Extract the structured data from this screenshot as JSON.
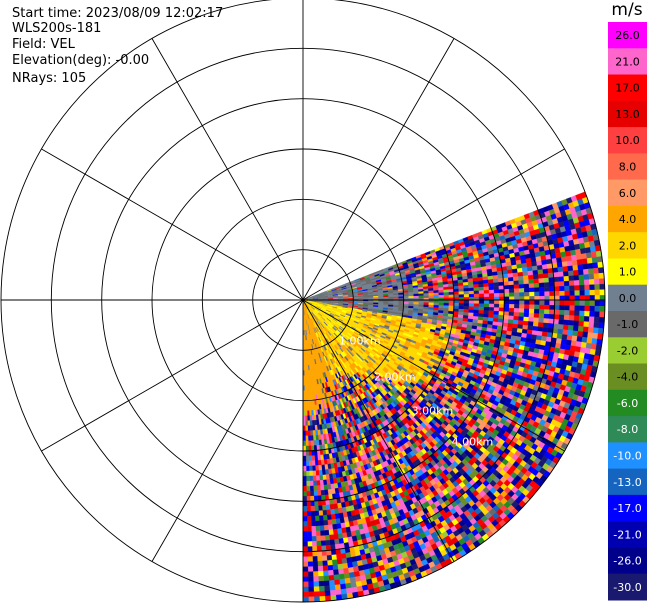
{
  "header": {
    "start_time": "Start time: 2023/08/09 12:02:17",
    "instrument": "WLS200s-181",
    "field": "Field: VEL",
    "elevation": "Elevation(deg): -0.00",
    "nrays": "NRays: 105"
  },
  "colorbar": {
    "unit": "m/s",
    "levels": [
      "26.0",
      "21.0",
      "17.0",
      "13.0",
      "10.0",
      "8.0",
      "6.0",
      "4.0",
      "2.0",
      "1.0",
      "0.0",
      "-1.0",
      "-2.0",
      "-4.0",
      "-6.0",
      "-8.0",
      "-10.0",
      "-13.0",
      "-17.0",
      "-21.0",
      "-26.0",
      "-30.0"
    ],
    "colors": [
      "#ff00ff",
      "#ff66cc",
      "#ff0000",
      "#e60000",
      "#ff4040",
      "#ff6a4d",
      "#ff9966",
      "#ffa500",
      "#ffd700",
      "#ffff00",
      "#708090",
      "#696969",
      "#9acd32",
      "#6b8e23",
      "#228b22",
      "#2e8b57",
      "#1e90ff",
      "#1565c0",
      "#0000ff",
      "#0000b0",
      "#00008b",
      "#191970"
    ],
    "label_colors": [
      "#000000",
      "#000000",
      "#000000",
      "#000000",
      "#000000",
      "#000000",
      "#000000",
      "#000000",
      "#000000",
      "#000000",
      "#000000",
      "#000000",
      "#000000",
      "#000000",
      "#ffffff",
      "#ffffff",
      "#ffffff",
      "#ffffff",
      "#ffffff",
      "#ffffff",
      "#ffffff",
      "#ffffff"
    ]
  },
  "chart_data": {
    "type": "heatmap",
    "projection": "PPI (polar)",
    "field": "VEL",
    "units": "m/s",
    "elevation_deg": -0.0,
    "n_rays": 105,
    "azimuth_sector_deg": [
      69,
      180
    ],
    "range_rings_km": [
      1.0,
      2.0,
      3.0,
      4.0,
      5.0,
      6.0
    ],
    "range_ring_labels": [
      "1.00km",
      "2.00km",
      "3.00km",
      "4.00km"
    ],
    "spokes_every_deg": 30,
    "scan_max_range_km": 6.0,
    "dominant_pattern": [
      {
        "region": "near range, azimuth 90-160 deg",
        "value_range": [
          1.0,
          6.0
        ]
      },
      {
        "region": "near range, azimuth 160-180 deg",
        "value_range": [
          4.0,
          6.0
        ]
      },
      {
        "region": "azimuth 80-100 deg band",
        "value_range": [
          -1.0,
          1.0
        ]
      },
      {
        "region": "far range (beyond ~2.5 km)",
        "value_range": [
          -30.0,
          26.0
        ]
      }
    ]
  }
}
